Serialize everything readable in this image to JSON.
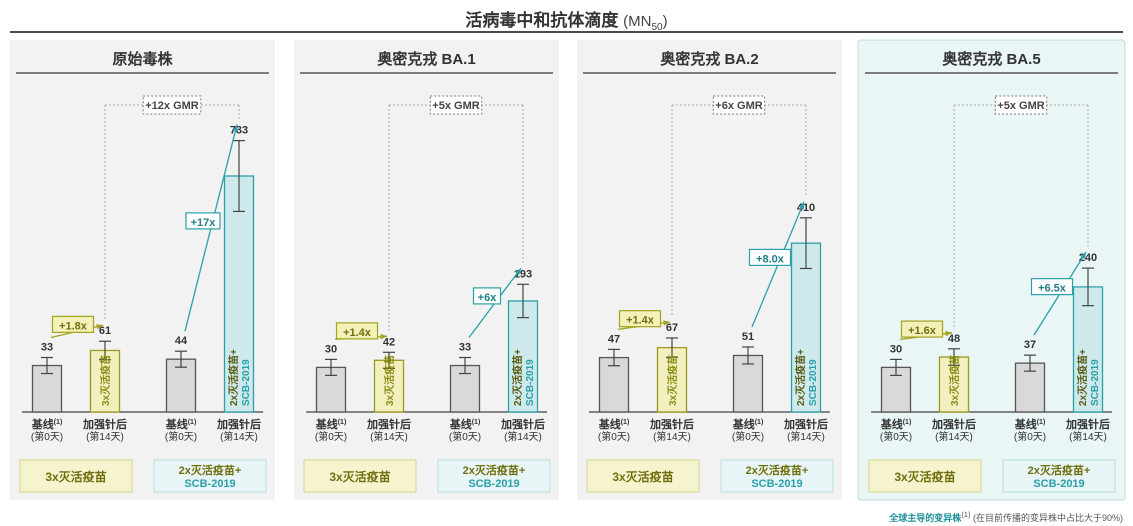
{
  "title": "活病毒中和抗体滴度",
  "title_unit": "(MN",
  "title_unit_sub": "50",
  "title_unit_close": ")",
  "colors": {
    "baseline": "#d9d9d9",
    "inactivated": "#f3f0c0",
    "scb": "#cde9ec",
    "olive": "#8a8a12",
    "teal": "#2aa0a8",
    "highlight_bg": "#eaf5f6"
  },
  "footnote": {
    "highlight": "全球主导的变异株",
    "sup": "(1)",
    "text": " (在目前传播的变异株中占比大于90%)"
  },
  "chart_data": [
    {
      "type": "bar",
      "title": "原始毒株",
      "highlight": false,
      "groups": [
        {
          "label": "3x灭活疫苗",
          "bars": [
            {
              "x_label": "基线",
              "x_sup": "(1)",
              "x_sub": "(第0天)",
              "value": 33,
              "color": "baseline"
            },
            {
              "x_label": "加强针后",
              "x_sub": "(第14天)",
              "value": 61,
              "color": "inactivated",
              "inner_label": "3x灭活疫苗"
            }
          ],
          "fold": "+1.8x"
        },
        {
          "label": "2x灭活疫苗+",
          "label2": "SCB-2019",
          "bars": [
            {
              "x_label": "基线",
              "x_sup": "(1)",
              "x_sub": "(第0天)",
              "value": 44,
              "color": "baseline"
            },
            {
              "x_label": "加强针后",
              "x_sub": "(第14天)",
              "value": 733,
              "color": "scb",
              "inner_label": "2x灭活疫苗+",
              "inner_label2": "SCB-2019"
            }
          ],
          "fold": "+17x"
        }
      ],
      "gmr": "+12x GMR"
    },
    {
      "type": "bar",
      "title": "奥密克戎 BA.1",
      "highlight": false,
      "groups": [
        {
          "label": "3x灭活疫苗",
          "bars": [
            {
              "x_label": "基线",
              "x_sup": "(1)",
              "x_sub": "(第0天)",
              "value": 30,
              "color": "baseline"
            },
            {
              "x_label": "加强针后",
              "x_sub": "(第14天)",
              "value": 42,
              "color": "inactivated",
              "inner_label": "3x灭活疫苗"
            }
          ],
          "fold": "+1.4x"
        },
        {
          "label": "2x灭活疫苗+",
          "label2": "SCB-2019",
          "bars": [
            {
              "x_label": "基线",
              "x_sup": "(1)",
              "x_sub": "(第0天)",
              "value": 33,
              "color": "baseline"
            },
            {
              "x_label": "加强针后",
              "x_sub": "(第14天)",
              "value": 193,
              "color": "scb",
              "inner_label": "2x灭活疫苗+",
              "inner_label2": "SCB-2019"
            }
          ],
          "fold": "+6x"
        }
      ],
      "gmr": "+5x GMR"
    },
    {
      "type": "bar",
      "title": "奥密克戎 BA.2",
      "highlight": false,
      "groups": [
        {
          "label": "3x灭活疫苗",
          "bars": [
            {
              "x_label": "基线",
              "x_sup": "(1)",
              "x_sub": "(第0天)",
              "value": 47,
              "color": "baseline"
            },
            {
              "x_label": "加强针后",
              "x_sub": "(第14天)",
              "value": 67,
              "color": "inactivated",
              "inner_label": "3x灭活疫苗"
            }
          ],
          "fold": "+1.4x"
        },
        {
          "label": "2x灭活疫苗+",
          "label2": "SCB-2019",
          "bars": [
            {
              "x_label": "基线",
              "x_sup": "(1)",
              "x_sub": "(第0天)",
              "value": 51,
              "color": "baseline"
            },
            {
              "x_label": "加强针后",
              "x_sub": "(第14天)",
              "value": 410,
              "color": "scb",
              "inner_label": "2x灭活疫苗+",
              "inner_label2": "SCB-2019"
            }
          ],
          "fold": "+8.0x"
        }
      ],
      "gmr": "+6x GMR"
    },
    {
      "type": "bar",
      "title": "奥密克戎 BA.5",
      "highlight": true,
      "groups": [
        {
          "label": "3x灭活疫苗",
          "bars": [
            {
              "x_label": "基线",
              "x_sup": "(1)",
              "x_sub": "(第0天)",
              "value": 30,
              "color": "baseline"
            },
            {
              "x_label": "加强针后",
              "x_sub": "(第14天)",
              "value": 48,
              "color": "inactivated",
              "inner_label": "3x灭活疫苗"
            }
          ],
          "fold": "+1.6x"
        },
        {
          "label": "2x灭活疫苗+",
          "label2": "SCB-2019",
          "bars": [
            {
              "x_label": "基线",
              "x_sup": "(1)",
              "x_sub": "(第0天)",
              "value": 37,
              "color": "baseline"
            },
            {
              "x_label": "加强针后",
              "x_sub": "(第14天)",
              "value": 240,
              "color": "scb",
              "inner_label": "2x灭活疫苗+",
              "inner_label2": "SCB-2019"
            }
          ],
          "fold": "+6.5x"
        }
      ],
      "gmr": "+5x GMR"
    }
  ]
}
